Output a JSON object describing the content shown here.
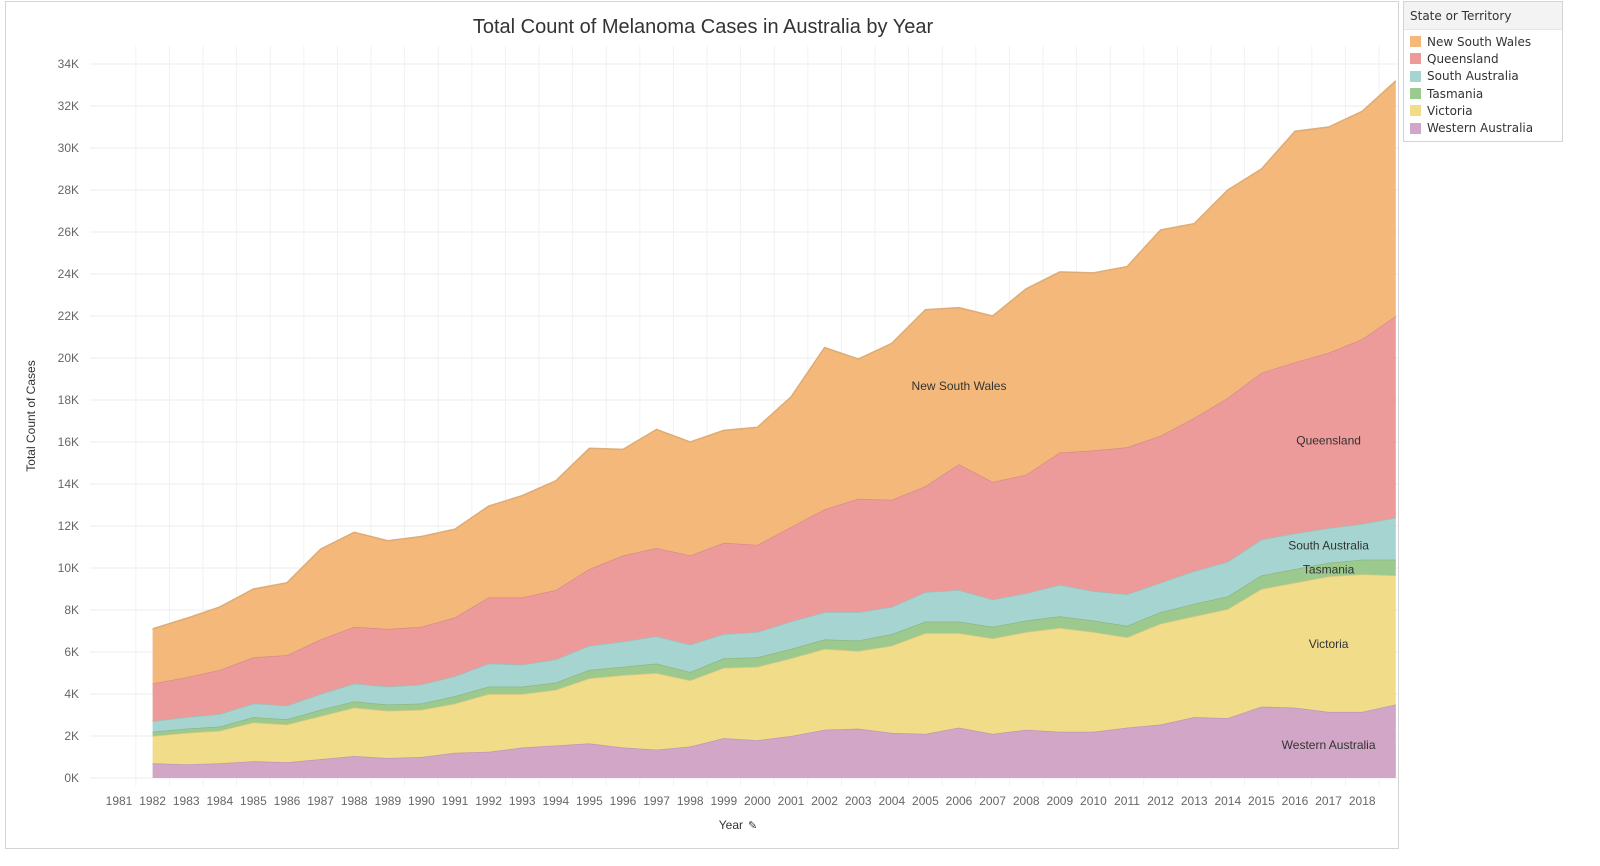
{
  "legend": {
    "title": "State or Territory"
  },
  "chart_data": {
    "type": "area",
    "stacked": true,
    "title": "Total Count of Melanoma Cases in Australia by Year",
    "xlabel": "Year",
    "xlabel_icon": "pin-icon",
    "ylabel": "Total Count of Cases",
    "ylim": [
      0,
      34000
    ],
    "yticks": [
      0,
      2000,
      4000,
      6000,
      8000,
      10000,
      12000,
      14000,
      16000,
      18000,
      20000,
      22000,
      24000,
      26000,
      28000,
      30000,
      32000,
      34000
    ],
    "ytick_labels": [
      "0K",
      "2K",
      "4K",
      "6K",
      "8K",
      "10K",
      "12K",
      "14K",
      "16K",
      "18K",
      "20K",
      "22K",
      "24K",
      "26K",
      "28K",
      "30K",
      "32K",
      "34K"
    ],
    "x_categories": [
      "1981",
      "1982",
      "1983",
      "1984",
      "1985",
      "1986",
      "1987",
      "1988",
      "1989",
      "1990",
      "1991",
      "1992",
      "1993",
      "1994",
      "1995",
      "1996",
      "1997",
      "1998",
      "1999",
      "2000",
      "2001",
      "2002",
      "2003",
      "2004",
      "2005",
      "2006",
      "2007",
      "2008",
      "2009",
      "2010",
      "2011",
      "2012",
      "2013",
      "2014",
      "2015",
      "2016",
      "2017",
      "2018"
    ],
    "grid": true,
    "legend_position": "right",
    "stack_order": [
      "Western Australia",
      "Victoria",
      "Tasmania",
      "South Australia",
      "Queensland",
      "New South Wales"
    ],
    "legend_order": [
      "New South Wales",
      "Queensland",
      "South Australia",
      "Tasmania",
      "Victoria",
      "Western Australia"
    ],
    "series": [
      {
        "name": "Western Australia",
        "color": "#d1a6c6",
        "label_year": 2017,
        "values": [
          700,
          650,
          700,
          800,
          750,
          900,
          1050,
          950,
          1000,
          1200,
          1250,
          1450,
          1550,
          1650,
          1450,
          1350,
          1500,
          1900,
          1800,
          2000,
          2300,
          2350,
          2150,
          2100,
          2400,
          2100,
          2300,
          2200,
          2200,
          2400,
          2550,
          2900,
          2850,
          3400,
          3350,
          3150,
          3150,
          3500
        ]
      },
      {
        "name": "Victoria",
        "color": "#f1dc8a",
        "label_year": 2017,
        "values": [
          1300,
          1500,
          1550,
          1850,
          1800,
          2050,
          2300,
          2250,
          2250,
          2350,
          2750,
          2550,
          2650,
          3100,
          3450,
          3650,
          3150,
          3350,
          3500,
          3700,
          3850,
          3700,
          4150,
          4800,
          4500,
          4550,
          4650,
          4950,
          4750,
          4300,
          4800,
          4800,
          5200,
          5600,
          5950,
          6450,
          6550,
          6150
        ]
      },
      {
        "name": "Tasmania",
        "color": "#9cc98e",
        "label_year": 2017,
        "values": [
          200,
          200,
          200,
          250,
          250,
          300,
          300,
          300,
          300,
          350,
          350,
          350,
          350,
          400,
          400,
          450,
          400,
          450,
          450,
          450,
          450,
          500,
          550,
          550,
          550,
          550,
          550,
          550,
          550,
          550,
          550,
          600,
          600,
          650,
          650,
          650,
          700,
          750
        ]
      },
      {
        "name": "South Australia",
        "color": "#a6d5d1",
        "label_year": 2017,
        "values": [
          500,
          550,
          600,
          650,
          650,
          750,
          850,
          850,
          900,
          950,
          1100,
          1050,
          1100,
          1150,
          1200,
          1300,
          1300,
          1150,
          1200,
          1300,
          1300,
          1350,
          1300,
          1400,
          1500,
          1300,
          1300,
          1500,
          1400,
          1500,
          1400,
          1550,
          1650,
          1700,
          1700,
          1650,
          1700,
          2000
        ]
      },
      {
        "name": "Queensland",
        "color": "#ec9a9a",
        "label_year": 2017,
        "values": [
          1800,
          1900,
          2100,
          2200,
          2400,
          2600,
          2700,
          2750,
          2750,
          2800,
          3150,
          3200,
          3300,
          3650,
          4100,
          4200,
          4250,
          4350,
          4150,
          4500,
          4900,
          5400,
          5100,
          5050,
          6000,
          5600,
          5650,
          6300,
          6700,
          7000,
          7000,
          7300,
          7800,
          7950,
          8150,
          8350,
          8800,
          9600
        ]
      },
      {
        "name": "New South Wales",
        "color": "#f4b97a",
        "label_year": 2006,
        "values": [
          2600,
          2800,
          3000,
          3250,
          3450,
          4300,
          4500,
          4200,
          4300,
          4200,
          4350,
          4850,
          5200,
          5750,
          5050,
          5650,
          5400,
          5350,
          5600,
          6200,
          7700,
          6650,
          7450,
          8400,
          7450,
          7900,
          8850,
          8600,
          8450,
          8600,
          9800,
          9250,
          9900,
          9700,
          11000,
          10750,
          10850,
          11200
        ]
      }
    ]
  }
}
